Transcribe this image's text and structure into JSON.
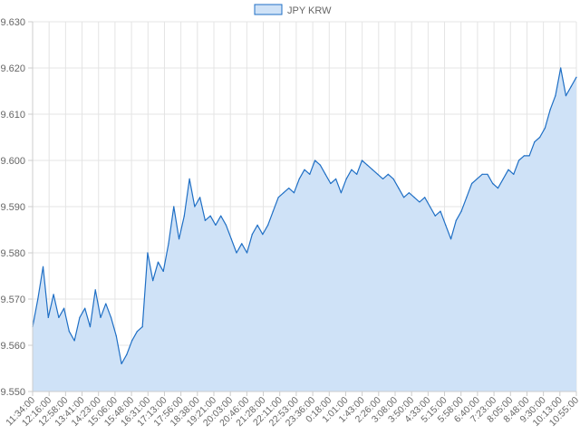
{
  "chart_data": {
    "type": "area",
    "legend": {
      "position": "top",
      "entries": [
        "JPY KRW"
      ]
    },
    "series": [
      {
        "name": "JPY KRW",
        "color": "#1f6fc5",
        "fill": "#cfe2f7",
        "points": [
          [
            "11:34:00",
            9.564
          ],
          [
            "11:50:00",
            9.57
          ],
          [
            "12:00:00",
            9.577
          ],
          [
            "12:08:00",
            9.566
          ],
          [
            "12:16:00",
            9.571
          ],
          [
            "12:30:00",
            9.566
          ],
          [
            "12:45:00",
            9.568
          ],
          [
            "12:58:00",
            9.563
          ],
          [
            "13:10:00",
            9.561
          ],
          [
            "13:25:00",
            9.566
          ],
          [
            "13:41:00",
            9.568
          ],
          [
            "13:55:00",
            9.564
          ],
          [
            "14:10:00",
            9.572
          ],
          [
            "14:23:00",
            9.566
          ],
          [
            "14:40:00",
            9.569
          ],
          [
            "14:52:00",
            9.566
          ],
          [
            "15:06:00",
            9.562
          ],
          [
            "15:20:00",
            9.556
          ],
          [
            "15:30:00",
            9.558
          ],
          [
            "15:38:00",
            9.561
          ],
          [
            "15:48:00",
            9.563
          ],
          [
            "16:00:00",
            9.564
          ],
          [
            "16:10:00",
            9.58
          ],
          [
            "16:20:00",
            9.574
          ],
          [
            "16:31:00",
            9.578
          ],
          [
            "16:45:00",
            9.576
          ],
          [
            "17:00:00",
            9.582
          ],
          [
            "17:13:00",
            9.59
          ],
          [
            "17:25:00",
            9.583
          ],
          [
            "17:40:00",
            9.588
          ],
          [
            "17:56:00",
            9.596
          ],
          [
            "18:05:00",
            9.59
          ],
          [
            "18:20:00",
            9.592
          ],
          [
            "18:38:00",
            9.587
          ],
          [
            "18:50:00",
            9.588
          ],
          [
            "19:05:00",
            9.586
          ],
          [
            "19:21:00",
            9.588
          ],
          [
            "19:35:00",
            9.586
          ],
          [
            "19:50:00",
            9.583
          ],
          [
            "20:03:00",
            9.58
          ],
          [
            "20:15:00",
            9.582
          ],
          [
            "20:30:00",
            9.58
          ],
          [
            "20:46:00",
            9.584
          ],
          [
            "21:00:00",
            9.586
          ],
          [
            "21:15:00",
            9.584
          ],
          [
            "21:28:00",
            9.586
          ],
          [
            "21:45:00",
            9.589
          ],
          [
            "22:00:00",
            9.592
          ],
          [
            "22:11:00",
            9.593
          ],
          [
            "22:25:00",
            9.594
          ],
          [
            "22:40:00",
            9.593
          ],
          [
            "22:53:00",
            9.596
          ],
          [
            "23:10:00",
            9.598
          ],
          [
            "23:25:00",
            9.597
          ],
          [
            "23:36:00",
            9.6
          ],
          [
            "23:50:00",
            9.599
          ],
          [
            "0:05:00",
            9.597
          ],
          [
            "0:18:00",
            9.595
          ],
          [
            "0:35:00",
            9.596
          ],
          [
            "0:50:00",
            9.593
          ],
          [
            "1:01:00",
            9.596
          ],
          [
            "1:15:00",
            9.598
          ],
          [
            "1:30:00",
            9.597
          ],
          [
            "1:43:00",
            9.6
          ],
          [
            "2:00:00",
            9.599
          ],
          [
            "2:10:00",
            9.598
          ],
          [
            "2:26:00",
            9.597
          ],
          [
            "2:40:00",
            9.596
          ],
          [
            "2:55:00",
            9.597
          ],
          [
            "3:08:00",
            9.596
          ],
          [
            "3:25:00",
            9.594
          ],
          [
            "3:35:00",
            9.592
          ],
          [
            "3:50:00",
            9.593
          ],
          [
            "4:05:00",
            9.592
          ],
          [
            "4:20:00",
            9.591
          ],
          [
            "4:33:00",
            9.592
          ],
          [
            "4:50:00",
            9.59
          ],
          [
            "5:00:00",
            9.588
          ],
          [
            "5:15:00",
            9.589
          ],
          [
            "5:30:00",
            9.586
          ],
          [
            "5:45:00",
            9.583
          ],
          [
            "5:58:00",
            9.587
          ],
          [
            "6:10:00",
            9.589
          ],
          [
            "6:25:00",
            9.592
          ],
          [
            "6:40:00",
            9.595
          ],
          [
            "6:55:00",
            9.596
          ],
          [
            "7:10:00",
            9.597
          ],
          [
            "7:23:00",
            9.597
          ],
          [
            "7:40:00",
            9.595
          ],
          [
            "7:55:00",
            9.594
          ],
          [
            "8:05:00",
            9.596
          ],
          [
            "8:20:00",
            9.598
          ],
          [
            "8:35:00",
            9.597
          ],
          [
            "8:48:00",
            9.6
          ],
          [
            "9:05:00",
            9.601
          ],
          [
            "9:20:00",
            9.601
          ],
          [
            "9:30:00",
            9.604
          ],
          [
            "9:45:00",
            9.605
          ],
          [
            "10:00:00",
            9.607
          ],
          [
            "10:13:00",
            9.611
          ],
          [
            "10:25:00",
            9.614
          ],
          [
            "10:35:00",
            9.62
          ],
          [
            "10:45:00",
            9.614
          ],
          [
            "10:55:00",
            9.616
          ],
          [
            "11:05:00",
            9.618
          ]
        ]
      }
    ],
    "x_tick_labels": [
      "11:34:00",
      "12:16:00",
      "12:58:00",
      "13:41:00",
      "14:23:00",
      "15:06:00",
      "15:48:00",
      "16:31:00",
      "17:13:00",
      "17:56:00",
      "18:38:00",
      "19:21:00",
      "20:03:00",
      "20:46:00",
      "21:28:00",
      "22:11:00",
      "22:53:00",
      "23:36:00",
      "0:18:00",
      "1:01:00",
      "1:43:00",
      "2:26:00",
      "3:08:00",
      "3:50:00",
      "4:33:00",
      "5:15:00",
      "5:58:00",
      "6:40:00",
      "7:23:00",
      "8:05:00",
      "8:48:00",
      "9:30:00",
      "10:13:00",
      "10:55:00"
    ],
    "y_tick_labels": [
      "9.550",
      "9.560",
      "9.570",
      "9.580",
      "9.590",
      "9.600",
      "9.610",
      "9.620",
      "9.630"
    ],
    "ylim": [
      9.55,
      9.63
    ],
    "grid": true
  }
}
